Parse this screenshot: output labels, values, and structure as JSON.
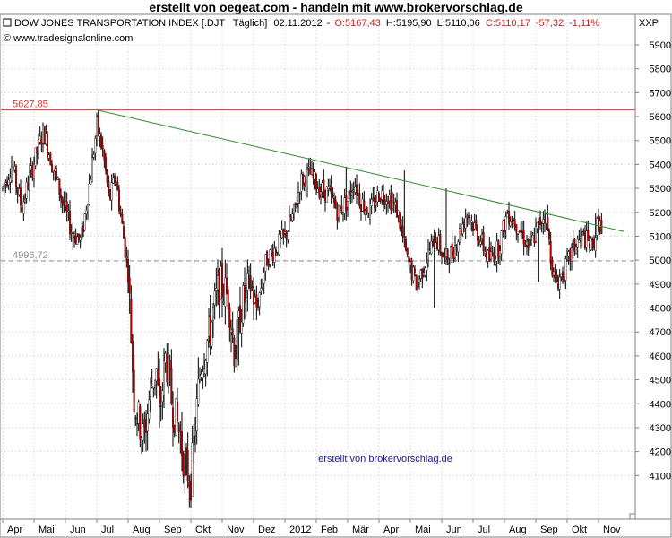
{
  "header": {
    "title": "erstellt von oegeat.com  - handeln mit  www.brokervorschlag.de"
  },
  "chart_data": {
    "type": "candlestick",
    "title": "DOW JONES TRANSPORTATION INDEX [.DJT",
    "info": {
      "period": "Täglich]",
      "date": "02.11.2012",
      "open": "O:5167,43",
      "high": "H:5195,90",
      "low": "L:5110,06",
      "close": "C:5110,17",
      "change": "-57,32",
      "change_pct": "-1,11%"
    },
    "copyright": "© www.tradesignalonline.com",
    "currency_label": "XXP",
    "watermark": "erstellt von brokervorschlag.de",
    "ylim": [
      4030,
      5960
    ],
    "yticks": [
      4100,
      4200,
      4300,
      4400,
      4500,
      4600,
      4700,
      4800,
      4900,
      5000,
      5100,
      5200,
      5300,
      5400,
      5500,
      5600,
      5700,
      5800,
      5900
    ],
    "ytick_labels": [
      "4100",
      "4200",
      "4300",
      "4400",
      "4500",
      "4600",
      "4700",
      "4800",
      "4900",
      "5000",
      "5100",
      "5200",
      "5300",
      "5400",
      "5500",
      "5600",
      "5700",
      "5800",
      "5900"
    ],
    "xtick_labels": [
      "Apr",
      "Mai",
      "Jun",
      "Jul",
      "Aug",
      "Sep",
      "Okt",
      "Nov",
      "Dez",
      "2012",
      "Feb",
      "Mär",
      "Apr",
      "Mai",
      "Jun",
      "Jul",
      "Aug",
      "Sep",
      "Okt",
      "Nov"
    ],
    "horizontal_lines": [
      {
        "value": 5627.85,
        "label": "5627,85",
        "color": "#e03030",
        "style": "solid"
      },
      {
        "value": 4996.72,
        "label": "4996,72",
        "color": "#909090",
        "style": "dashed"
      }
    ],
    "trendline": {
      "color": "#2e8b2e",
      "start_month": 3.0,
      "start_value": 5627.85,
      "end_month": 19.8,
      "end_value": 5120
    },
    "price_path": [
      [
        0.0,
        5300
      ],
      [
        0.3,
        5400
      ],
      [
        0.6,
        5220
      ],
      [
        1.0,
        5410
      ],
      [
        1.3,
        5540
      ],
      [
        1.6,
        5390
      ],
      [
        1.9,
        5250
      ],
      [
        2.2,
        5120
      ],
      [
        2.5,
        5080
      ],
      [
        2.8,
        5350
      ],
      [
        3.0,
        5560
      ],
      [
        3.2,
        5450
      ],
      [
        3.4,
        5250
      ],
      [
        3.6,
        5350
      ],
      [
        3.8,
        5150
      ],
      [
        4.0,
        4950
      ],
      [
        4.2,
        4400
      ],
      [
        4.5,
        4250
      ],
      [
        4.7,
        4450
      ],
      [
        4.9,
        4550
      ],
      [
        5.0,
        4350
      ],
      [
        5.2,
        4600
      ],
      [
        5.4,
        4400
      ],
      [
        5.6,
        4300
      ],
      [
        5.8,
        4150
      ],
      [
        6.0,
        4080
      ],
      [
        6.3,
        4550
      ],
      [
        6.6,
        4700
      ],
      [
        6.9,
        4900
      ],
      [
        7.2,
        4850
      ],
      [
        7.4,
        4600
      ],
      [
        7.6,
        4800
      ],
      [
        7.9,
        4900
      ],
      [
        8.1,
        4800
      ],
      [
        8.4,
        5000
      ],
      [
        8.7,
        5050
      ],
      [
        9.0,
        5100
      ],
      [
        9.3,
        5200
      ],
      [
        9.5,
        5330
      ],
      [
        9.8,
        5360
      ],
      [
        10.1,
        5300
      ],
      [
        10.4,
        5280
      ],
      [
        10.7,
        5200
      ],
      [
        11.0,
        5250
      ],
      [
        11.2,
        5330
      ],
      [
        11.4,
        5250
      ],
      [
        11.7,
        5200
      ],
      [
        12.0,
        5280
      ],
      [
        12.3,
        5270
      ],
      [
        12.6,
        5200
      ],
      [
        12.9,
        5000
      ],
      [
        13.2,
        4900
      ],
      [
        13.5,
        5000
      ],
      [
        13.8,
        5100
      ],
      [
        14.1,
        5000
      ],
      [
        14.4,
        5050
      ],
      [
        14.8,
        5200
      ],
      [
        15.2,
        5100
      ],
      [
        15.5,
        5000
      ],
      [
        15.8,
        5050
      ],
      [
        16.1,
        5200
      ],
      [
        16.4,
        5150
      ],
      [
        16.8,
        5050
      ],
      [
        17.1,
        5150
      ],
      [
        17.3,
        5200
      ],
      [
        17.6,
        4900
      ],
      [
        17.9,
        4950
      ],
      [
        18.2,
        5050
      ],
      [
        18.5,
        5100
      ],
      [
        18.8,
        5050
      ],
      [
        19.0,
        5170
      ],
      [
        19.12,
        5110
      ]
    ],
    "dip_lows": [
      {
        "month": 6.05,
        "low": 4030
      },
      {
        "month": 5.85,
        "low": 4100
      },
      {
        "month": 5.0,
        "low": 4300
      },
      {
        "month": 4.55,
        "low": 4200
      },
      {
        "month": 7.4,
        "low": 4530
      },
      {
        "month": 7.5,
        "low": 4560
      },
      {
        "month": 8.1,
        "low": 4750
      },
      {
        "month": 2.25,
        "low": 5040
      },
      {
        "month": 13.25,
        "low": 4860
      },
      {
        "month": 13.75,
        "low": 4800
      },
      {
        "month": 17.7,
        "low": 4870
      },
      {
        "month": 17.1,
        "low": 4910
      }
    ],
    "peaks": [
      {
        "month": 3.05,
        "high": 5625
      },
      {
        "month": 10.95,
        "high": 5390
      },
      {
        "month": 12.8,
        "high": 5375
      },
      {
        "month": 14.15,
        "high": 5300
      },
      {
        "month": 17.4,
        "high": 5230
      },
      {
        "month": 18.9,
        "high": 5195
      }
    ]
  }
}
